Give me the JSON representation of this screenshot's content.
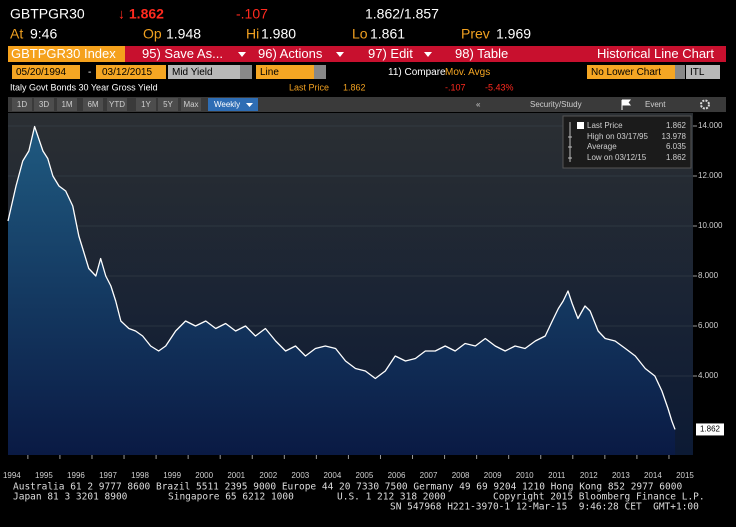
{
  "header": {
    "ticker": "GBTPGR30",
    "last": "↓ 1.862",
    "change": "-.107",
    "bid_ask": "1.862/1.857",
    "at_label": "At",
    "at": "9:46",
    "open_label": "Op",
    "open": "1.948",
    "high_label": "Hi",
    "high": "1.980",
    "low_label": "Lo",
    "low": "1.861",
    "prev_label": "Prev",
    "prev": "1.969"
  },
  "menu": {
    "security": "GBTPGR30 Index",
    "buttons": [
      "95) Save As...",
      "96) Actions",
      "97) Edit",
      "98) Table"
    ],
    "view": "Historical Line Chart"
  },
  "controls": {
    "start": "05/20/1994",
    "separator": "-",
    "end": "03/12/2015",
    "field": "Mid Yield",
    "style": "Line",
    "compare": "11) Compare",
    "mov_avgs": "Mov. Avgs",
    "lower": "No Lower Chart",
    "currency": "ITL"
  },
  "status": {
    "last_price_label": "Last Price",
    "last_price": "1.862",
    "change": "-.107",
    "change_pct": "-5.43%"
  },
  "toolbar": {
    "ranges": [
      "1D",
      "3D",
      "1M",
      "6M",
      "YTD",
      "1Y",
      "5Y",
      "Max"
    ],
    "frequency": "Weekly",
    "back": "«",
    "study": "Security/Study",
    "event": "Event"
  },
  "chart_data": {
    "type": "line",
    "title": "Italy Govt Bonds 30 Year Gross Yield",
    "x": [
      1994.38,
      1994.63,
      1994.84,
      1995.03,
      1995.21,
      1995.47,
      1995.62,
      1995.78,
      1995.97,
      1996.18,
      1996.4,
      1996.59,
      1996.71,
      1996.9,
      1997.12,
      1997.27,
      1997.43,
      1997.59,
      1997.74,
      1997.9,
      1998.15,
      1998.36,
      1998.58,
      1998.83,
      1999.08,
      1999.3,
      1999.61,
      1999.92,
      2000.23,
      2000.55,
      2000.86,
      2001.17,
      2001.48,
      2001.79,
      2002.1,
      2002.41,
      2002.73,
      2003.04,
      2003.35,
      2003.66,
      2003.97,
      2004.28,
      2004.6,
      2004.91,
      2005.22,
      2005.53,
      2005.84,
      2006.15,
      2006.46,
      2006.78,
      2007.09,
      2007.4,
      2007.71,
      2008.02,
      2008.33,
      2008.64,
      2008.96,
      2009.27,
      2009.58,
      2009.89,
      2010.2,
      2010.51,
      2010.83,
      2011.14,
      2011.36,
      2011.55,
      2011.7,
      2011.85,
      2011.98,
      2012.16,
      2012.38,
      2012.54,
      2012.79,
      2013.01,
      2013.32,
      2013.64,
      2013.95,
      2014.26,
      2014.56,
      2014.78,
      2014.97,
      2015.09,
      2015.19
    ],
    "series": [
      {
        "name": "Last Price",
        "color": "#ffffff",
        "values": [
          10.2,
          11.6,
          12.6,
          13.0,
          13.978,
          13.0,
          12.7,
          12.0,
          11.6,
          11.4,
          10.8,
          9.6,
          9.1,
          8.3,
          8.0,
          8.7,
          8.0,
          7.6,
          7.0,
          6.2,
          5.9,
          5.8,
          5.6,
          5.2,
          5.0,
          5.2,
          5.8,
          6.2,
          6.0,
          6.2,
          5.9,
          6.1,
          5.8,
          6.0,
          5.6,
          5.9,
          5.4,
          5.0,
          5.2,
          4.8,
          5.1,
          5.2,
          5.1,
          4.6,
          4.3,
          4.2,
          3.9,
          4.2,
          4.8,
          4.6,
          4.7,
          5.0,
          5.0,
          5.2,
          5.0,
          5.3,
          5.2,
          5.5,
          5.2,
          5.0,
          5.2,
          5.1,
          5.4,
          5.6,
          6.2,
          6.7,
          7.0,
          7.4,
          6.9,
          6.3,
          6.8,
          6.6,
          5.8,
          5.5,
          5.4,
          5.1,
          4.8,
          4.3,
          4.0,
          3.4,
          2.7,
          2.2,
          1.862
        ]
      }
    ],
    "xlim": [
      1994.38,
      2015.75
    ],
    "xticks": [
      1994,
      1995,
      1996,
      1997,
      1998,
      1999,
      2000,
      2001,
      2002,
      2003,
      2004,
      2005,
      2006,
      2007,
      2008,
      2009,
      2010,
      2011,
      2012,
      2013,
      2014,
      2015
    ],
    "ylim": [
      0.84,
      14.52
    ],
    "yticks": [
      {
        "value": 4,
        "label": "4.000"
      },
      {
        "value": 6,
        "label": "6.000"
      },
      {
        "value": 8,
        "label": "8.000"
      },
      {
        "value": 10,
        "label": "10.000"
      },
      {
        "value": 12,
        "label": "12.000"
      },
      {
        "value": 14,
        "label": "14.000"
      }
    ],
    "grid": true,
    "legend": {
      "last_value": "1.862",
      "high_label": "High on 03/17/95",
      "high": "13.978",
      "average_label": "Average",
      "average": "6.035",
      "low_label": "Low on 03/12/15",
      "low": "1.862"
    },
    "last_price_marker": "1.862"
  },
  "footer": {
    "line1": "Australia 61 2 9777 8600 Brazil 5511 2395 9000 Europe 44 20 7330 7500 Germany 49 69 9204 1210 Hong Kong 852 2977 6000",
    "line2": [
      "Japan 81 3 3201 8900",
      "Singapore 65 6212 1000",
      "U.S. 1 212 318 2000",
      "Copyright 2015 Bloomberg Finance L.P."
    ],
    "line3": "SN 547968 H221-3970-1 12-Mar-15  9:46:28 CET  GMT+1:00"
  }
}
